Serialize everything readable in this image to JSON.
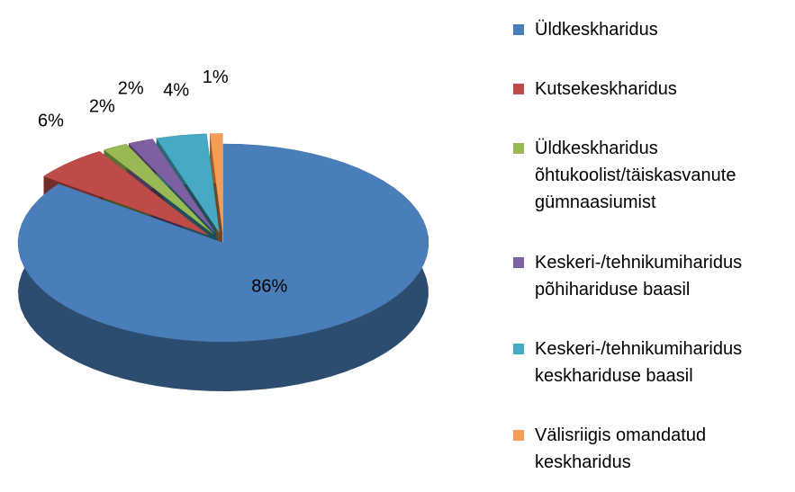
{
  "chart_data": {
    "type": "pie",
    "categories": [
      "Üldkeskharidus",
      "Kutsekeskharidus",
      "Üldkeskharidus õhtukoolist/täiskasvanute gümnaasiumist",
      "Keskeri-/tehnikumiharidus põhihariduse baasil",
      "Keskeri-/tehnikumiharidus keskhariduse baasil",
      "Välisriigis omandatud keskharidus"
    ],
    "values": [
      86,
      6,
      2,
      2,
      4,
      1
    ],
    "value_labels": [
      "86%",
      "6%",
      "2%",
      "2%",
      "4%",
      "1%"
    ],
    "colors": [
      "#4a7ebb",
      "#be4b48",
      "#98b954",
      "#7d60a0",
      "#46aac5",
      "#f59d56"
    ],
    "legend": "right"
  }
}
